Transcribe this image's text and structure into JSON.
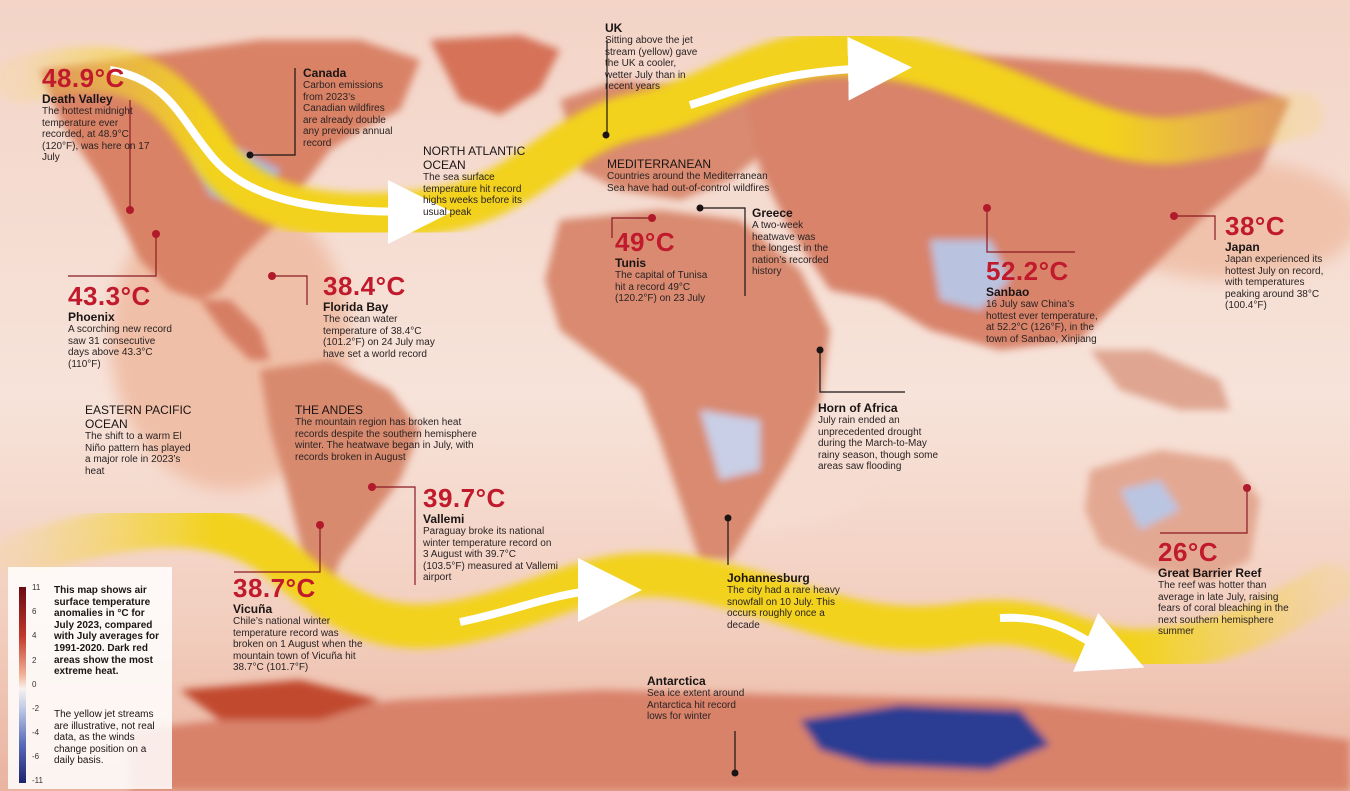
{
  "colors": {
    "accent_red": "#c01a2c",
    "jet_yellow": "#f2d21a",
    "ocean_warm": "#f4c9b4",
    "land_hot": "#c96047",
    "cold_blue": "#3a4fa0"
  },
  "labels": {
    "death_valley": {
      "value": "48.9°C",
      "place": "Death Valley",
      "desc": "The hottest midnight temperature ever recorded, at 48.9°C (120°F), was here on 17 July"
    },
    "canada": {
      "place": "Canada",
      "desc": "Carbon emissions from 2023’s Canadian wildfires are already double any previous annual record"
    },
    "north_atlantic": {
      "region": "NORTH ATLANTIC OCEAN",
      "desc": "The sea surface temperature hit record highs weeks before its usual peak"
    },
    "uk": {
      "place": "UK",
      "desc": "Sitting above the jet stream (yellow) gave the UK a cooler, wetter July than in recent years"
    },
    "mediterranean": {
      "region": "MEDITERRANEAN",
      "desc": "Countries around the Mediterranean Sea have had out-of-control wildfires"
    },
    "greece": {
      "place": "Greece",
      "desc": "A two-week heatwave was the longest in the nation’s recorded history"
    },
    "tunis": {
      "value": "49°C",
      "place": "Tunis",
      "desc": "The capital of Tunisa hit a record 49°C (120.2°F) on 23 July"
    },
    "sanbao": {
      "value": "52.2°C",
      "place": "Sanbao",
      "desc": "16 July saw China’s hottest ever temperature, at 52.2°C (126°F), in the town of Sanbao, Xinjiang"
    },
    "japan": {
      "value": "38°C",
      "place": "Japan",
      "desc": "Japan experienced its hottest July on record, with temperatures peaking around 38°C (100.4°F)"
    },
    "phoenix": {
      "value": "43.3°C",
      "place": "Phoenix",
      "desc": "A scorching new record saw 31 consecutive days above 43.3°C (110°F)"
    },
    "florida_bay": {
      "value": "38.4°C",
      "place": "Florida Bay",
      "desc": "The ocean water temperature of 38.4°C (101.2°F) on 24 July may have set a world record"
    },
    "eastern_pacific": {
      "region": "EASTERN PACIFIC OCEAN",
      "desc": "The shift to a warm El Niño pattern has played a major role in 2023’s heat"
    },
    "andes": {
      "region": "THE ANDES",
      "desc": "The mountain region has broken heat records despite the southern hemisphere winter. The heatwave began in July, with records broken in August"
    },
    "horn_of_africa": {
      "place": "Horn of Africa",
      "desc": "July rain ended an unprecedented drought during the March-to-May rainy season, though some areas saw flooding"
    },
    "vallemi": {
      "value": "39.7°C",
      "place": "Vallemi",
      "desc": "Paraguay broke its national winter temperature record on 3 August with 39.7°C (103.5°F) measured at Vallemi airport"
    },
    "johannesburg": {
      "place": "Johannesburg",
      "desc": "The city had a rare heavy snowfall on 10 July. This occurs roughly once a decade"
    },
    "great_barrier_reef": {
      "value": "26°C",
      "place": "Great Barrier Reef",
      "desc": "The reef was hotter than average in late July, raising fears of coral bleaching in the next southern hemisphere summer"
    },
    "vicuna": {
      "value": "38.7°C",
      "place": "Vicuña",
      "desc": "Chile’s national winter temperature record was broken on 1 August when the mountain town of Vicuña hit 38.7°C (101.7°F)"
    },
    "antarctica": {
      "place": "Antarctica",
      "desc": "Sea ice extent around Antarctica hit record lows for winter"
    }
  },
  "legend": {
    "ticks": [
      "11",
      "6",
      "4",
      "2",
      "0",
      "-2",
      "-4",
      "-6",
      "-11"
    ],
    "text": "This map shows air surface temperature anomalies in °C for July 2023, compared with July averages for 1991-2020. Dark red areas show the most extreme heat.",
    "note": "The yellow jet streams are illustrative, not real data, as the winds change position on a daily basis."
  }
}
